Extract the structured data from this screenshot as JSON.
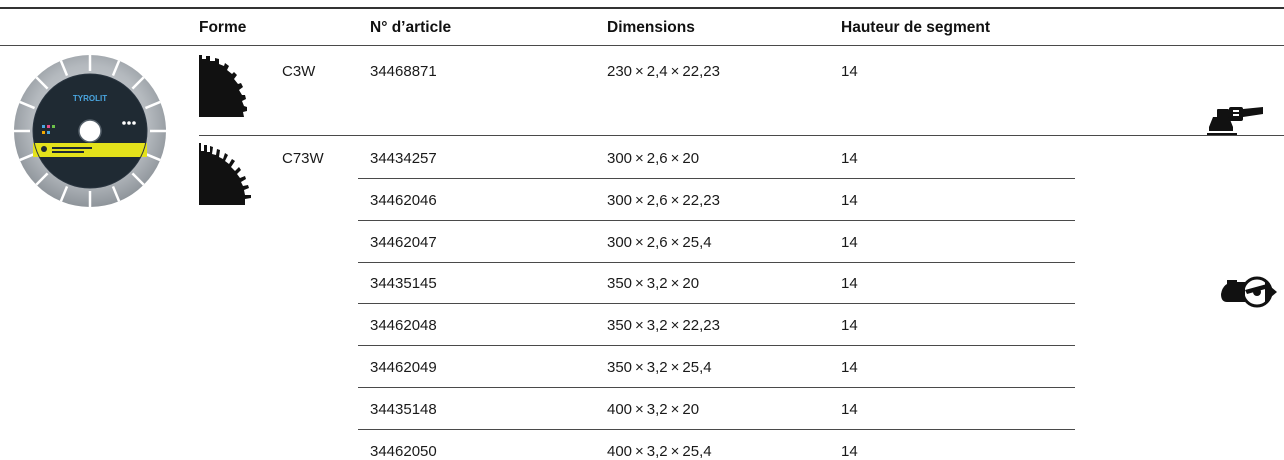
{
  "headers": {
    "shape": "Forme",
    "article": "N° d’article",
    "dimensions": "Dimensions",
    "segment_height": "Hauteur de segment"
  },
  "groups": [
    {
      "shape_code": "C3W",
      "machine_icon": "angle-grinder-icon",
      "rows": [
        {
          "article": "34468871",
          "dimensions": "230 × 2,4 × 22,23",
          "height": "14"
        }
      ]
    },
    {
      "shape_code": "C73W",
      "machine_icon": "cut-off-saw-icon",
      "rows": [
        {
          "article": "34434257",
          "dimensions": "300 × 2,6 × 20",
          "height": "14"
        },
        {
          "article": "34462046",
          "dimensions": "300 × 2,6 × 22,23",
          "height": "14"
        },
        {
          "article": "34462047",
          "dimensions": "300 × 2,6 × 25,4",
          "height": "14"
        },
        {
          "article": "34435145",
          "dimensions": "350 × 3,2 × 20",
          "height": "14"
        },
        {
          "article": "34462048",
          "dimensions": "350 × 3,2 × 22,23",
          "height": "14"
        },
        {
          "article": "34462049",
          "dimensions": "350 × 3,2 × 25,4",
          "height": "14"
        },
        {
          "article": "34435148",
          "dimensions": "400 × 3,2 × 20",
          "height": "14"
        },
        {
          "article": "34462050",
          "dimensions": "400 × 3,2 × 25,4",
          "height": "14"
        }
      ]
    }
  ],
  "product_logo": "TYROLIT",
  "colors": {
    "rule": "#4a4a4a",
    "text": "#1a1a1a",
    "disc_accent": "#e4e21b",
    "disc_label": "#1f2a33"
  }
}
